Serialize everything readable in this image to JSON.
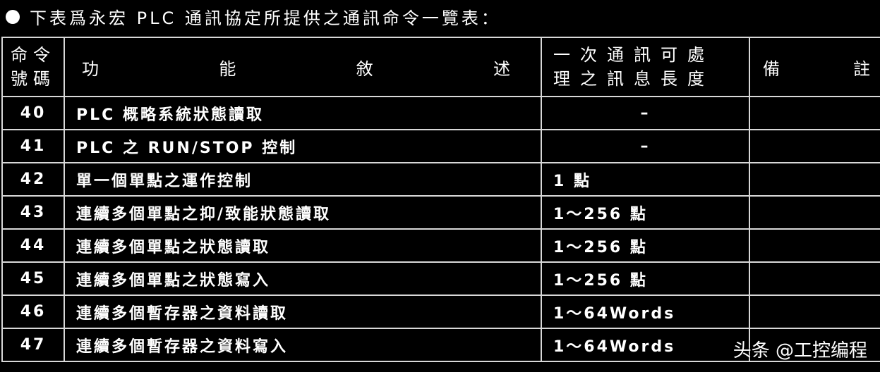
{
  "title": "下表爲永宏 PLC 通訊協定所提供之通訊命令一覽表：",
  "headers": {
    "code": [
      "命令",
      "號碼"
    ],
    "function": [
      "功",
      "能",
      "敘",
      "述"
    ],
    "length": [
      "一次通訊可處",
      "理之訊息長度"
    ],
    "note": [
      "備",
      "註"
    ]
  },
  "rows": [
    {
      "code": "40",
      "function": "PLC 概略系統狀態讀取",
      "length": "–",
      "note": ""
    },
    {
      "code": "41",
      "function": "PLC 之 RUN/STOP 控制",
      "length": "–",
      "note": ""
    },
    {
      "code": "42",
      "function": "單一個單點之運作控制",
      "length": "1 點",
      "note": ""
    },
    {
      "code": "43",
      "function": "連續多個單點之抑/致能狀態讀取",
      "length": "1～256 點",
      "note": ""
    },
    {
      "code": "44",
      "function": "連續多個單點之狀態讀取",
      "length": "1～256 點",
      "note": ""
    },
    {
      "code": "45",
      "function": "連續多個單點之狀態寫入",
      "length": "1～256 點",
      "note": ""
    },
    {
      "code": "46",
      "function": "連續多個暫存器之資料讀取",
      "length": "1～64Words",
      "note": ""
    },
    {
      "code": "47",
      "function": "連續多個暫存器之資料寫入",
      "length": "1～64Words",
      "note": ""
    }
  ],
  "watermark": "头条 @工控编程"
}
